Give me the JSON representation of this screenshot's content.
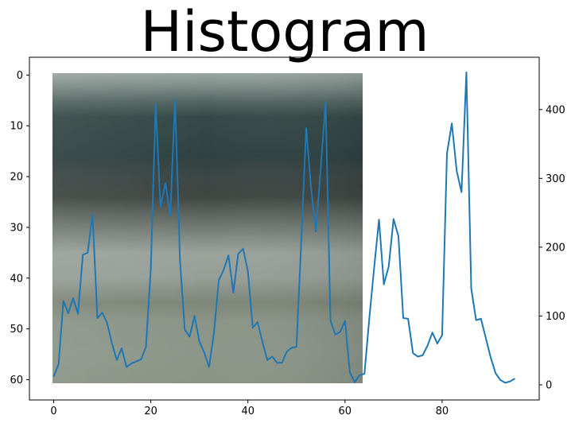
{
  "chart_data": {
    "type": "line",
    "title": "Histogram",
    "image_panel": {
      "description_colors": {
        "top_band": "#7f8e89",
        "dark_band": "#2f4241",
        "mid_band": "#4a524e",
        "lower_band": "#8b958d",
        "bottom_band": "#8a9687"
      },
      "extent": {
        "x": [
          0,
          64
        ],
        "y": [
          0,
          64
        ]
      }
    },
    "series": [
      {
        "color": "#1f77b4",
        "x": [
          0,
          1,
          2,
          3,
          4,
          5,
          6,
          7,
          8,
          9,
          10,
          11,
          12,
          13,
          14,
          15,
          16,
          17,
          18,
          19,
          20,
          21,
          22,
          23,
          24,
          25,
          26,
          27,
          28,
          29,
          30,
          31,
          32,
          33,
          34,
          35,
          36,
          37,
          38,
          39,
          40,
          41,
          42,
          43,
          44,
          45,
          46,
          47,
          48,
          49,
          50,
          51,
          52,
          53,
          54,
          55,
          56,
          57,
          58,
          59,
          60,
          61,
          62,
          63,
          64,
          65,
          66,
          67,
          68,
          69,
          70,
          71,
          72,
          73,
          74,
          75,
          76,
          77,
          78,
          79,
          80,
          81,
          82,
          83,
          84,
          85,
          86,
          87,
          88,
          89,
          90,
          91,
          92,
          93,
          94,
          95
        ],
        "y": [
          12,
          30,
          122,
          104,
          126,
          103,
          189,
          192,
          248,
          97,
          105,
          90,
          60,
          36,
          53,
          26,
          31,
          34,
          37,
          55,
          168,
          408,
          258,
          293,
          246,
          415,
          182,
          80,
          70,
          100,
          63,
          47,
          26,
          75,
          152,
          167,
          188,
          134,
          190,
          198,
          165,
          83,
          91,
          62,
          36,
          41,
          32,
          32,
          48,
          54,
          55,
          210,
          373,
          287,
          223,
          315,
          411,
          94,
          73,
          77,
          93,
          18,
          4,
          14,
          16,
          96,
          170,
          240,
          146,
          172,
          241,
          216,
          97,
          96,
          46,
          41,
          43,
          57,
          76,
          60,
          72,
          336,
          380,
          311,
          280,
          454,
          140,
          94,
          96,
          68,
          40,
          17,
          7,
          3,
          5,
          9
        ]
      }
    ],
    "x_axis": {
      "range": [
        -5,
        100
      ],
      "ticks": [
        0,
        20,
        40,
        60,
        80
      ],
      "tick_labels": [
        "0",
        "20",
        "40",
        "60",
        "80"
      ]
    },
    "y_left": {
      "range": [
        64,
        -3.5
      ],
      "ticks": [
        0,
        10,
        20,
        30,
        40,
        50,
        60
      ],
      "tick_labels": [
        "0",
        "10",
        "20",
        "30",
        "40",
        "50",
        "60"
      ]
    },
    "y_right": {
      "range": [
        -22,
        476
      ],
      "ticks": [
        0,
        100,
        200,
        300,
        400
      ],
      "tick_labels": [
        "0",
        "100",
        "200",
        "300",
        "400"
      ]
    },
    "grid": false
  }
}
